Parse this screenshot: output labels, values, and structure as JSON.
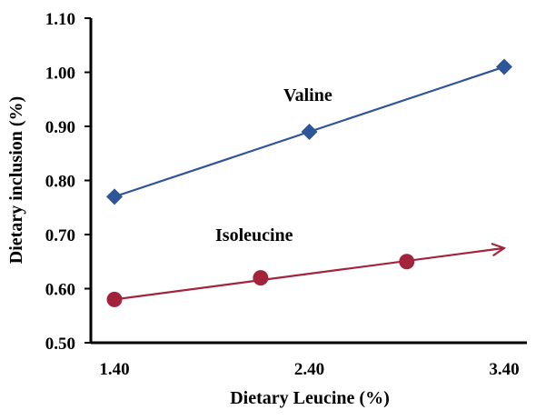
{
  "chart_data": {
    "type": "line",
    "xlabel": "Dietary Leucine (%)",
    "ylabel": "Dietary inclusion (%)",
    "xlim": [
      1.4,
      3.4
    ],
    "ylim": [
      0.5,
      1.1
    ],
    "xticks": [
      "1.40",
      "2.40",
      "3.40"
    ],
    "xtick_values": [
      1.4,
      2.4,
      3.4
    ],
    "yticks": [
      "0.50",
      "0.60",
      "0.70",
      "0.80",
      "0.90",
      "1.00",
      "1.10"
    ],
    "ytick_values": [
      0.5,
      0.6,
      0.7,
      0.8,
      0.9,
      1.0,
      1.1
    ],
    "grid": false,
    "series": [
      {
        "name": "Valine",
        "marker": "diamond",
        "color": "#2E5597",
        "x": [
          1.4,
          2.4,
          3.4
        ],
        "y": [
          0.77,
          0.89,
          1.01
        ],
        "line": {
          "x": [
            1.4,
            3.4
          ],
          "y": [
            0.77,
            1.01
          ]
        },
        "arrow": false
      },
      {
        "name": "Isoleucine",
        "marker": "circle",
        "color": "#A3233A",
        "x": [
          1.4,
          2.15,
          2.9
        ],
        "y": [
          0.58,
          0.62,
          0.65
        ],
        "line": {
          "x": [
            1.4,
            3.4
          ],
          "y": [
            0.58,
            0.675
          ]
        },
        "arrow": true
      }
    ]
  }
}
